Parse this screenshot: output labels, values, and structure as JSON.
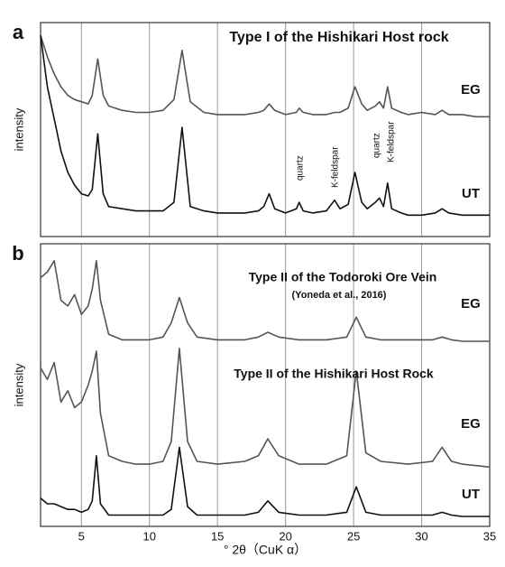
{
  "chart_data": [
    {
      "type": "line",
      "panel_label": "a",
      "title": "Type I of the Hishikari Host rock",
      "ylabel": "intensity",
      "x": [
        2,
        2.5,
        3,
        3.5,
        4,
        4.5,
        5,
        5.5,
        5.8,
        6.2,
        6.6,
        7,
        8,
        9,
        10,
        11,
        11.8,
        12.4,
        13,
        14,
        15,
        16,
        17,
        18,
        18.4,
        18.8,
        19.2,
        20,
        20.8,
        21,
        21.3,
        22,
        23,
        23.6,
        24,
        24.6,
        25.1,
        25.6,
        26,
        26.6,
        26.9,
        27.2,
        27.5,
        27.8,
        28.5,
        29,
        30,
        31,
        31.5,
        32,
        33,
        34,
        35
      ],
      "series": [
        {
          "name": "EG",
          "color": "#555555",
          "values": [
            94,
            84,
            76,
            70,
            66,
            64,
            63,
            62,
            66,
            83,
            66,
            61,
            59,
            58,
            58,
            59,
            64,
            87,
            63,
            58,
            57,
            57,
            57,
            58,
            59,
            62,
            59,
            57,
            58,
            60,
            58,
            57,
            57,
            58,
            58,
            60,
            70,
            62,
            59,
            61,
            63,
            60,
            70,
            60,
            58,
            57,
            58,
            57,
            59,
            57,
            57,
            56,
            56
          ]
        },
        {
          "name": "UT",
          "color": "#111111",
          "values": [
            94,
            70,
            55,
            40,
            30,
            24,
            20,
            19,
            22,
            48,
            20,
            14,
            13,
            12,
            12,
            12,
            16,
            51,
            14,
            12,
            11,
            11,
            11,
            12,
            14,
            20,
            13,
            11,
            13,
            16,
            12,
            11,
            12,
            17,
            13,
            15,
            30,
            16,
            13,
            16,
            18,
            14,
            25,
            13,
            11,
            10,
            10,
            11,
            13,
            11,
            10,
            10,
            10
          ]
        }
      ],
      "annotations": [
        "quartz",
        "K-feldspar",
        "quartz",
        "K-feldspar"
      ],
      "xlim": [
        2,
        35
      ],
      "xticks": [
        5,
        10,
        15,
        20,
        25,
        30,
        35
      ],
      "ylim": [
        0,
        100
      ],
      "grid": true
    },
    {
      "type": "line",
      "panel_label": "b",
      "ylabel": "intensity",
      "xlabel": "° 2θ（CuK α）",
      "x": [
        2,
        2.5,
        3,
        3.5,
        4,
        4.5,
        5,
        5.5,
        5.8,
        6.1,
        6.4,
        7,
        8,
        9,
        10,
        11,
        11.6,
        12.2,
        12.8,
        13.5,
        15,
        17,
        18,
        18.7,
        19.5,
        21,
        23,
        24.5,
        25.2,
        25.9,
        27,
        29,
        30.8,
        31.5,
        32.2,
        33,
        35
      ],
      "series": [
        {
          "name": "EG",
          "color": "#555555",
          "values": [
            88,
            90,
            94,
            80,
            78,
            82,
            75,
            78,
            84,
            94,
            80,
            68,
            66,
            66,
            66,
            67,
            72,
            81,
            72,
            67,
            66,
            66,
            67,
            68.7,
            67,
            66,
            66,
            67,
            74,
            67,
            66,
            66,
            66,
            67,
            66,
            65.5,
            65.5
          ]
        },
        {
          "name": "EG",
          "color": "#555555",
          "values": [
            56,
            52,
            58,
            44,
            48,
            42,
            44,
            50,
            55,
            62,
            40,
            25,
            23,
            22,
            22,
            23,
            30,
            63,
            30,
            23,
            22,
            23,
            25,
            31,
            25,
            22,
            22,
            25,
            55,
            26,
            23,
            22,
            23,
            28,
            23,
            22,
            21
          ]
        },
        {
          "name": "UT",
          "color": "#111111",
          "values": [
            10,
            8,
            8,
            7,
            6,
            6,
            5,
            6,
            9,
            25,
            8,
            4,
            4,
            4,
            4,
            4,
            6,
            28,
            7,
            4,
            4,
            4,
            5,
            9,
            5,
            4,
            4,
            5,
            14,
            5,
            4,
            4,
            4,
            5,
            4,
            3.5,
            3.5
          ]
        }
      ],
      "annotations": [
        "Type II of the Todoroki Ore Vein",
        "(Yoneda et al., 2016)",
        "Type II of the Hishikari Host Rock"
      ],
      "xlim": [
        2,
        35
      ],
      "xticks": [
        5,
        10,
        15,
        20,
        25,
        30,
        35
      ],
      "ylim": [
        0,
        100
      ],
      "grid": true
    }
  ]
}
